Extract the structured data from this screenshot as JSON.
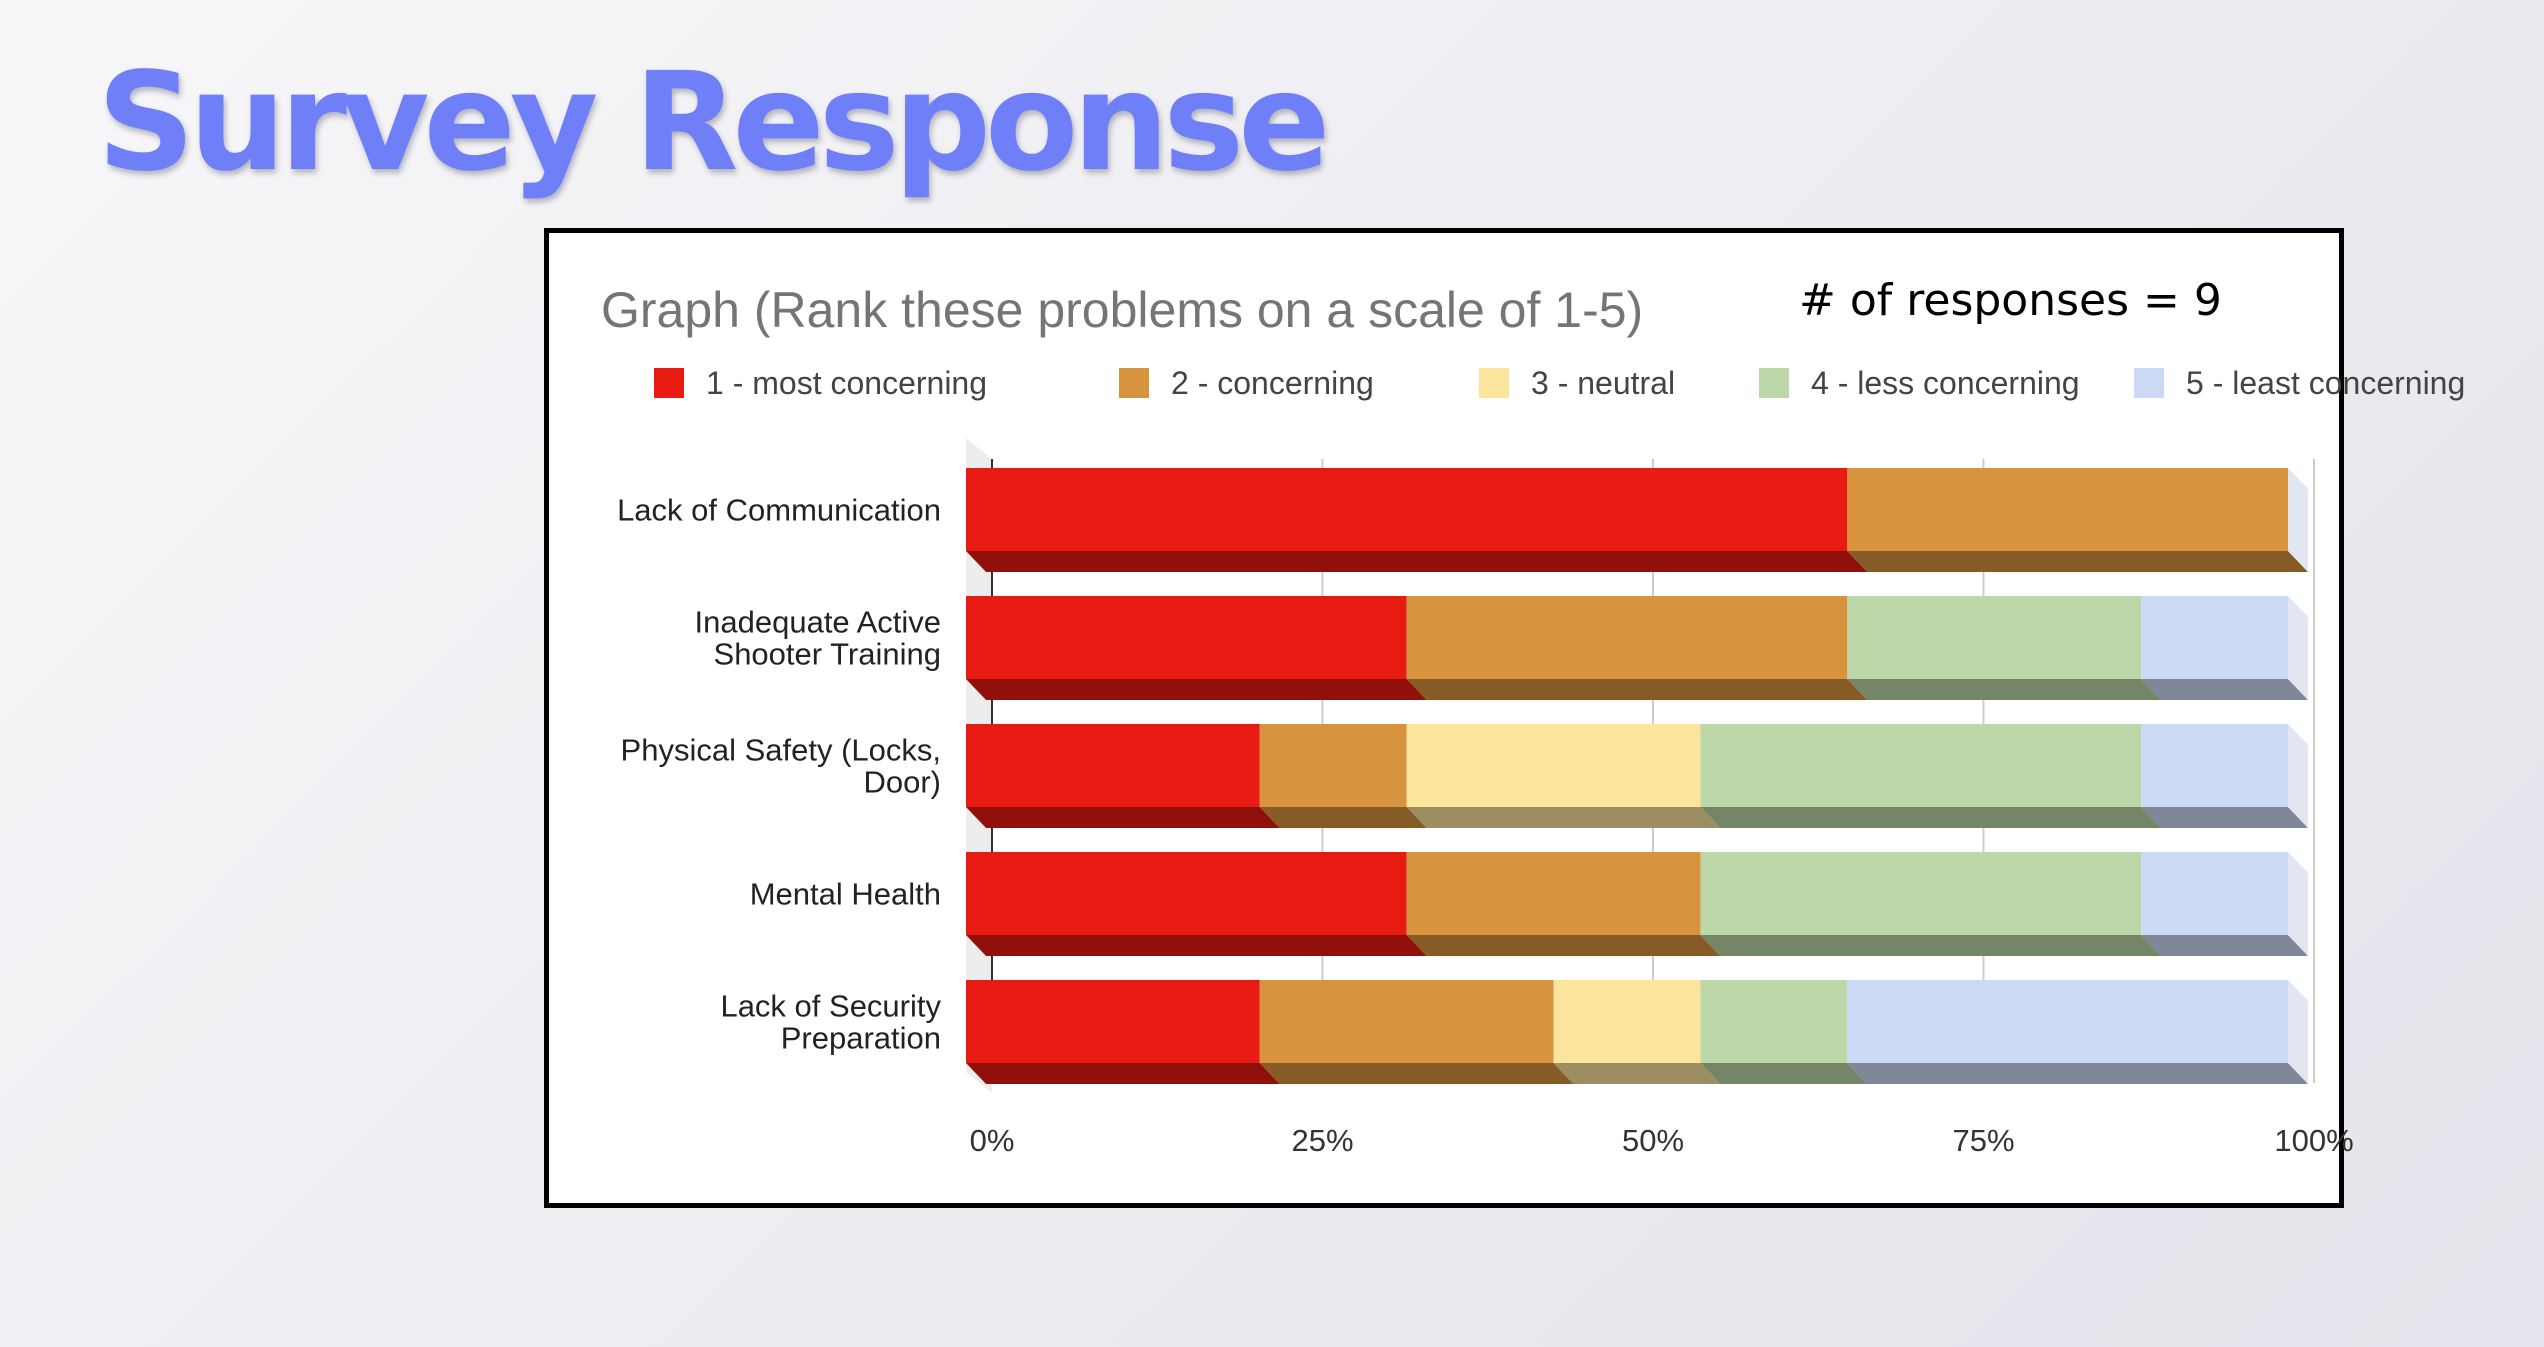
{
  "slide": {
    "title": "Survey Response",
    "response_note": "# of responses = 9"
  },
  "chart_data": {
    "type": "bar",
    "orientation": "horizontal",
    "stacked": "percent",
    "three_d": true,
    "title": "Graph (Rank these problems on a scale of 1-5)",
    "categories": [
      "Lack of Communication",
      "Inadequate Active Shooter Training",
      "Physical Safety (Locks, Door)",
      "Mental Health",
      "Lack of Security Preparation"
    ],
    "category_lines": [
      [
        "Lack of Communication"
      ],
      [
        "Inadequate Active",
        "Shooter Training"
      ],
      [
        "Physical Safety (Locks,",
        "Door)"
      ],
      [
        "Mental Health"
      ],
      [
        "Lack of Security",
        "Preparation"
      ]
    ],
    "series": [
      {
        "name": "1 - most concerning",
        "color": "#e81b13",
        "values": [
          6,
          3,
          2,
          3,
          2
        ]
      },
      {
        "name": "2 - concerning",
        "color": "#d8933e",
        "values": [
          3,
          3,
          1,
          2,
          2
        ]
      },
      {
        "name": "3 - neutral",
        "color": "#fbe59d",
        "values": [
          0,
          0,
          2,
          0,
          1
        ]
      },
      {
        "name": "4 - less concerning",
        "color": "#bcd7a8",
        "values": [
          0,
          2,
          3,
          3,
          1
        ]
      },
      {
        "name": "5 - least concerning",
        "color": "#cddaf5",
        "values": [
          0,
          1,
          1,
          1,
          3
        ]
      }
    ],
    "xlim": [
      0,
      1
    ],
    "x_ticks": [
      "0%",
      "25%",
      "50%",
      "75%",
      "100%"
    ],
    "legend_position": "top",
    "grid": true
  }
}
